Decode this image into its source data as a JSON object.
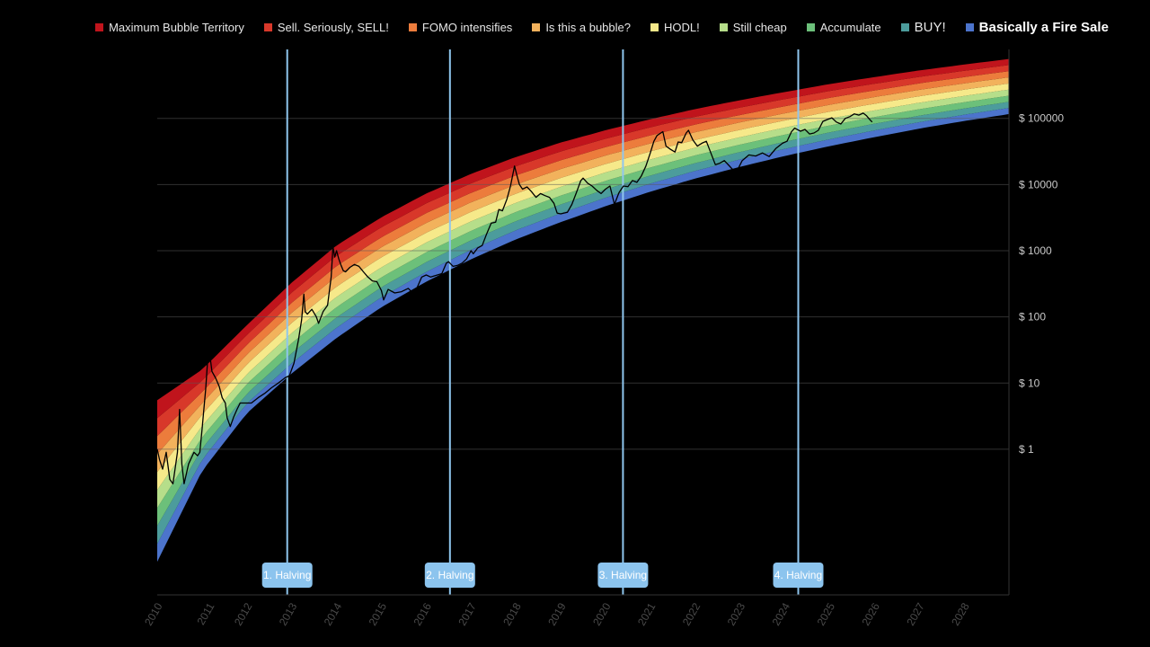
{
  "legend": [
    {
      "label": "Maximum Bubble Territory",
      "color": "#c0141c"
    },
    {
      "label": "Sell. Seriously, SELL!",
      "color": "#d8382a"
    },
    {
      "label": "FOMO intensifies",
      "color": "#ec7c3c"
    },
    {
      "label": "Is this a bubble?",
      "color": "#f2b25c"
    },
    {
      "label": "HODL!",
      "color": "#f6e98a"
    },
    {
      "label": "Still cheap",
      "color": "#b6de8a"
    },
    {
      "label": "Accumulate",
      "color": "#6cc07a"
    },
    {
      "label": "BUY!",
      "color": "#4c9c9c"
    },
    {
      "label": "Basically a Fire Sale",
      "color": "#4c74cc"
    }
  ],
  "chart_data": {
    "type": "line",
    "title": "",
    "xlabel": "",
    "ylabel": "",
    "y_scale": "log",
    "grid": true,
    "legend_position": "top",
    "x_ticks": [
      "2010",
      "2011",
      "2012",
      "2013",
      "2014",
      "2015",
      "2016",
      "2017",
      "2018",
      "2019",
      "2020",
      "2021",
      "2022",
      "2023",
      "2024",
      "2025",
      "2026",
      "2027",
      "2028"
    ],
    "y_ticks": [
      {
        "value": 1,
        "label": "$ 1"
      },
      {
        "value": 10,
        "label": "$ 10"
      },
      {
        "value": 100,
        "label": "$ 100"
      },
      {
        "value": 1000,
        "label": "$ 1000"
      },
      {
        "value": 10000,
        "label": "$ 10000"
      },
      {
        "value": 100000,
        "label": "$ 100000"
      }
    ],
    "xlim": [
      2010.0,
      2029.0
    ],
    "ylim": [
      0.0063,
      1100000
    ],
    "bands": {
      "names": [
        "Basically a Fire Sale",
        "BUY!",
        "Accumulate",
        "Still cheap",
        "HODL!",
        "Is this a bubble?",
        "FOMO intensifies",
        "Sell. Seriously, SELL!",
        "Maximum Bubble Territory"
      ],
      "colors": [
        "#4c74cc",
        "#4c9c9c",
        "#6cc07a",
        "#b6de8a",
        "#f6e98a",
        "#f2b25c",
        "#ec7c3c",
        "#d8382a",
        "#c0141c"
      ],
      "lower_boundary": [
        {
          "x": 2010.0,
          "y": 0.02
        },
        {
          "x": 2011.0,
          "y": 0.47
        },
        {
          "x": 2012.0,
          "y": 3.5
        },
        {
          "x": 2013.0,
          "y": 14
        },
        {
          "x": 2014.0,
          "y": 48
        },
        {
          "x": 2015.0,
          "y": 140
        },
        {
          "x": 2016.0,
          "y": 340
        },
        {
          "x": 2017.0,
          "y": 740
        },
        {
          "x": 2018.0,
          "y": 1480
        },
        {
          "x": 2019.0,
          "y": 2700
        },
        {
          "x": 2020.0,
          "y": 4700
        },
        {
          "x": 2021.0,
          "y": 7800
        },
        {
          "x": 2022.0,
          "y": 12300
        },
        {
          "x": 2023.0,
          "y": 18500
        },
        {
          "x": 2024.0,
          "y": 27000
        },
        {
          "x": 2025.0,
          "y": 38000
        },
        {
          "x": 2026.0,
          "y": 52000
        },
        {
          "x": 2027.0,
          "y": 70000
        },
        {
          "x": 2028.0,
          "y": 91000
        },
        {
          "x": 2029.0,
          "y": 116000
        }
      ],
      "upper_boundary": [
        {
          "x": 2010.0,
          "y": 5.5
        },
        {
          "x": 2011.0,
          "y": 16
        },
        {
          "x": 2012.0,
          "y": 75
        },
        {
          "x": 2013.0,
          "y": 330
        },
        {
          "x": 2014.0,
          "y": 1200
        },
        {
          "x": 2015.0,
          "y": 3200
        },
        {
          "x": 2016.0,
          "y": 7300
        },
        {
          "x": 2017.0,
          "y": 14500
        },
        {
          "x": 2018.0,
          "y": 26000
        },
        {
          "x": 2019.0,
          "y": 43000
        },
        {
          "x": 2020.0,
          "y": 66000
        },
        {
          "x": 2021.0,
          "y": 97000
        },
        {
          "x": 2022.0,
          "y": 138000
        },
        {
          "x": 2023.0,
          "y": 188000
        },
        {
          "x": 2024.0,
          "y": 250000
        },
        {
          "x": 2025.0,
          "y": 330000
        },
        {
          "x": 2026.0,
          "y": 420000
        },
        {
          "x": 2027.0,
          "y": 530000
        },
        {
          "x": 2028.0,
          "y": 650000
        },
        {
          "x": 2029.0,
          "y": 790000
        }
      ]
    },
    "price_series": {
      "color": "#000000",
      "points": [
        {
          "x": 2010.0,
          "y": 1.0
        },
        {
          "x": 2010.05,
          "y": 0.7
        },
        {
          "x": 2010.12,
          "y": 0.5
        },
        {
          "x": 2010.2,
          "y": 0.9
        },
        {
          "x": 2010.28,
          "y": 0.35
        },
        {
          "x": 2010.35,
          "y": 0.3
        },
        {
          "x": 2010.45,
          "y": 0.9
        },
        {
          "x": 2010.5,
          "y": 4.0
        },
        {
          "x": 2010.55,
          "y": 0.6
        },
        {
          "x": 2010.6,
          "y": 0.3
        },
        {
          "x": 2010.7,
          "y": 0.6
        },
        {
          "x": 2010.82,
          "y": 0.9
        },
        {
          "x": 2010.9,
          "y": 0.8
        },
        {
          "x": 2010.95,
          "y": 0.9
        },
        {
          "x": 2011.0,
          "y": 2.0
        },
        {
          "x": 2011.08,
          "y": 8.0
        },
        {
          "x": 2011.12,
          "y": 20
        },
        {
          "x": 2011.17,
          "y": 28
        },
        {
          "x": 2011.22,
          "y": 15
        },
        {
          "x": 2011.3,
          "y": 12
        },
        {
          "x": 2011.38,
          "y": 9
        },
        {
          "x": 2011.45,
          "y": 6
        },
        {
          "x": 2011.52,
          "y": 5
        },
        {
          "x": 2011.56,
          "y": 3
        },
        {
          "x": 2011.63,
          "y": 2.2
        },
        {
          "x": 2011.7,
          "y": 3
        },
        {
          "x": 2011.78,
          "y": 4
        },
        {
          "x": 2011.85,
          "y": 5
        },
        {
          "x": 2011.95,
          "y": 5
        },
        {
          "x": 2012.1,
          "y": 5
        },
        {
          "x": 2012.25,
          "y": 6
        },
        {
          "x": 2012.4,
          "y": 7
        },
        {
          "x": 2012.55,
          "y": 8.5
        },
        {
          "x": 2012.7,
          "y": 10
        },
        {
          "x": 2012.85,
          "y": 12
        },
        {
          "x": 2012.95,
          "y": 13
        },
        {
          "x": 2013.05,
          "y": 20
        },
        {
          "x": 2013.15,
          "y": 45
        },
        {
          "x": 2013.22,
          "y": 90
        },
        {
          "x": 2013.27,
          "y": 220
        },
        {
          "x": 2013.3,
          "y": 120
        },
        {
          "x": 2013.35,
          "y": 110
        },
        {
          "x": 2013.45,
          "y": 130
        },
        {
          "x": 2013.55,
          "y": 100
        },
        {
          "x": 2013.6,
          "y": 80
        },
        {
          "x": 2013.7,
          "y": 120
        },
        {
          "x": 2013.8,
          "y": 150
        },
        {
          "x": 2013.88,
          "y": 400
        },
        {
          "x": 2013.92,
          "y": 1150
        },
        {
          "x": 2013.96,
          "y": 800
        },
        {
          "x": 2014.0,
          "y": 1000
        },
        {
          "x": 2014.05,
          "y": 750
        },
        {
          "x": 2014.1,
          "y": 600
        },
        {
          "x": 2014.15,
          "y": 500
        },
        {
          "x": 2014.2,
          "y": 480
        },
        {
          "x": 2014.3,
          "y": 560
        },
        {
          "x": 2014.4,
          "y": 620
        },
        {
          "x": 2014.5,
          "y": 580
        },
        {
          "x": 2014.6,
          "y": 480
        },
        {
          "x": 2014.7,
          "y": 400
        },
        {
          "x": 2014.8,
          "y": 350
        },
        {
          "x": 2014.9,
          "y": 340
        },
        {
          "x": 2015.0,
          "y": 250
        },
        {
          "x": 2015.05,
          "y": 180
        },
        {
          "x": 2015.15,
          "y": 260
        },
        {
          "x": 2015.3,
          "y": 230
        },
        {
          "x": 2015.45,
          "y": 240
        },
        {
          "x": 2015.6,
          "y": 270
        },
        {
          "x": 2015.7,
          "y": 230
        },
        {
          "x": 2015.8,
          "y": 280
        },
        {
          "x": 2015.9,
          "y": 400
        },
        {
          "x": 2016.0,
          "y": 430
        },
        {
          "x": 2016.1,
          "y": 400
        },
        {
          "x": 2016.2,
          "y": 420
        },
        {
          "x": 2016.35,
          "y": 450
        },
        {
          "x": 2016.45,
          "y": 650
        },
        {
          "x": 2016.5,
          "y": 680
        },
        {
          "x": 2016.6,
          "y": 580
        },
        {
          "x": 2016.7,
          "y": 600
        },
        {
          "x": 2016.8,
          "y": 650
        },
        {
          "x": 2016.9,
          "y": 750
        },
        {
          "x": 2017.0,
          "y": 1000
        },
        {
          "x": 2017.05,
          "y": 900
        },
        {
          "x": 2017.15,
          "y": 1100
        },
        {
          "x": 2017.25,
          "y": 1200
        },
        {
          "x": 2017.35,
          "y": 1800
        },
        {
          "x": 2017.45,
          "y": 2600
        },
        {
          "x": 2017.55,
          "y": 2700
        },
        {
          "x": 2017.62,
          "y": 4200
        },
        {
          "x": 2017.7,
          "y": 4000
        },
        {
          "x": 2017.8,
          "y": 6000
        },
        {
          "x": 2017.88,
          "y": 9500
        },
        {
          "x": 2017.93,
          "y": 14000
        },
        {
          "x": 2017.97,
          "y": 19000
        },
        {
          "x": 2018.02,
          "y": 14000
        },
        {
          "x": 2018.08,
          "y": 10000
        },
        {
          "x": 2018.15,
          "y": 8500
        },
        {
          "x": 2018.25,
          "y": 9200
        },
        {
          "x": 2018.35,
          "y": 7800
        },
        {
          "x": 2018.45,
          "y": 6400
        },
        {
          "x": 2018.55,
          "y": 7300
        },
        {
          "x": 2018.65,
          "y": 6800
        },
        {
          "x": 2018.75,
          "y": 6400
        },
        {
          "x": 2018.85,
          "y": 5200
        },
        {
          "x": 2018.92,
          "y": 3700
        },
        {
          "x": 2019.0,
          "y": 3600
        },
        {
          "x": 2019.15,
          "y": 3800
        },
        {
          "x": 2019.25,
          "y": 5000
        },
        {
          "x": 2019.35,
          "y": 7500
        },
        {
          "x": 2019.45,
          "y": 11500
        },
        {
          "x": 2019.5,
          "y": 12500
        },
        {
          "x": 2019.6,
          "y": 10500
        },
        {
          "x": 2019.7,
          "y": 9500
        },
        {
          "x": 2019.8,
          "y": 8200
        },
        {
          "x": 2019.9,
          "y": 7300
        },
        {
          "x": 2020.0,
          "y": 8500
        },
        {
          "x": 2020.1,
          "y": 9500
        },
        {
          "x": 2020.2,
          "y": 5000
        },
        {
          "x": 2020.3,
          "y": 7500
        },
        {
          "x": 2020.4,
          "y": 9500
        },
        {
          "x": 2020.5,
          "y": 9300
        },
        {
          "x": 2020.6,
          "y": 11500
        },
        {
          "x": 2020.7,
          "y": 10800
        },
        {
          "x": 2020.8,
          "y": 13500
        },
        {
          "x": 2020.9,
          "y": 19000
        },
        {
          "x": 2021.0,
          "y": 30000
        },
        {
          "x": 2021.08,
          "y": 45000
        },
        {
          "x": 2021.15,
          "y": 55000
        },
        {
          "x": 2021.28,
          "y": 63000
        },
        {
          "x": 2021.35,
          "y": 38000
        },
        {
          "x": 2021.45,
          "y": 34000
        },
        {
          "x": 2021.55,
          "y": 31000
        },
        {
          "x": 2021.62,
          "y": 44000
        },
        {
          "x": 2021.7,
          "y": 43000
        },
        {
          "x": 2021.8,
          "y": 60000
        },
        {
          "x": 2021.85,
          "y": 66000
        },
        {
          "x": 2021.95,
          "y": 47000
        },
        {
          "x": 2022.05,
          "y": 38000
        },
        {
          "x": 2022.15,
          "y": 42000
        },
        {
          "x": 2022.25,
          "y": 45000
        },
        {
          "x": 2022.35,
          "y": 30000
        },
        {
          "x": 2022.45,
          "y": 20000
        },
        {
          "x": 2022.55,
          "y": 21000
        },
        {
          "x": 2022.65,
          "y": 23000
        },
        {
          "x": 2022.75,
          "y": 19500
        },
        {
          "x": 2022.85,
          "y": 16500
        },
        {
          "x": 2022.95,
          "y": 16800
        },
        {
          "x": 2023.05,
          "y": 23000
        },
        {
          "x": 2023.2,
          "y": 28000
        },
        {
          "x": 2023.35,
          "y": 27000
        },
        {
          "x": 2023.5,
          "y": 30000
        },
        {
          "x": 2023.65,
          "y": 26500
        },
        {
          "x": 2023.8,
          "y": 35000
        },
        {
          "x": 2023.95,
          "y": 42000
        },
        {
          "x": 2024.05,
          "y": 45000
        },
        {
          "x": 2024.15,
          "y": 63000
        },
        {
          "x": 2024.22,
          "y": 71000
        },
        {
          "x": 2024.35,
          "y": 64000
        },
        {
          "x": 2024.45,
          "y": 68000
        },
        {
          "x": 2024.55,
          "y": 58000
        },
        {
          "x": 2024.65,
          "y": 60000
        },
        {
          "x": 2024.75,
          "y": 66000
        },
        {
          "x": 2024.85,
          "y": 90000
        },
        {
          "x": 2024.95,
          "y": 96000
        },
        {
          "x": 2025.05,
          "y": 102000
        },
        {
          "x": 2025.15,
          "y": 88000
        },
        {
          "x": 2025.25,
          "y": 82000
        },
        {
          "x": 2025.35,
          "y": 100000
        },
        {
          "x": 2025.45,
          "y": 106000
        },
        {
          "x": 2025.55,
          "y": 117000
        },
        {
          "x": 2025.65,
          "y": 112000
        },
        {
          "x": 2025.75,
          "y": 120000
        },
        {
          "x": 2025.82,
          "y": 110000
        },
        {
          "x": 2025.9,
          "y": 95000
        },
        {
          "x": 2025.95,
          "y": 88000
        }
      ]
    },
    "halvings": [
      {
        "label": "1. Halving",
        "x": 2012.9
      },
      {
        "label": "2. Halving",
        "x": 2016.53
      },
      {
        "label": "3. Halving",
        "x": 2020.39
      },
      {
        "label": "4. Halving",
        "x": 2024.3
      }
    ]
  }
}
